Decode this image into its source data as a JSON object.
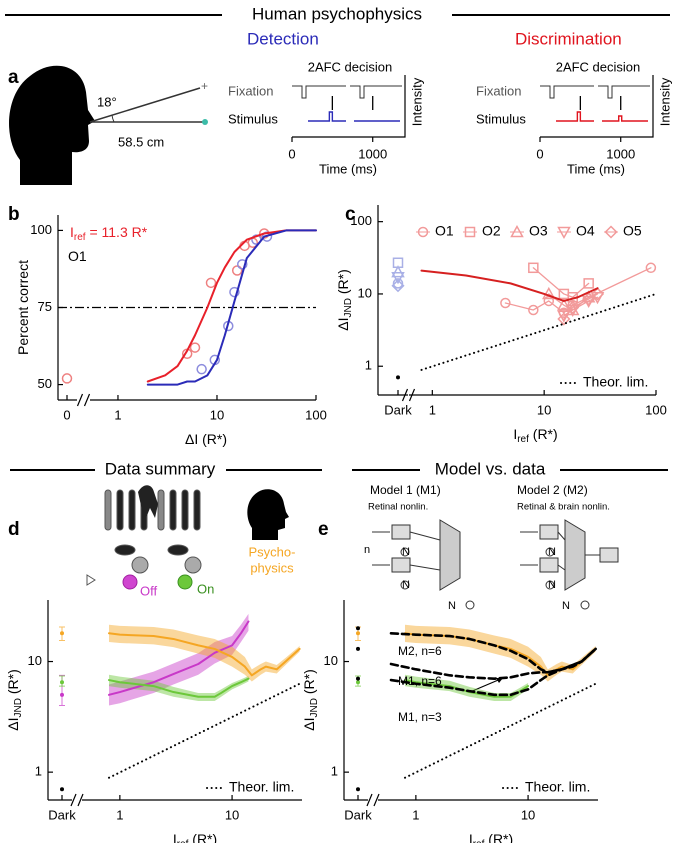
{
  "headers": [
    "Human psychophysics",
    "Data summary",
    "Model vs. data"
  ],
  "panel_a": {
    "panel": "a",
    "angle": "18°",
    "distance": "58.5 cm",
    "insets": [
      {
        "title": "Detection",
        "color": "#2b2bb8",
        "decision": "2AFC decision",
        "fixation": "Fixation",
        "stimulus": "Stimulus",
        "ylabel": "Intensity",
        "xlabel": "Time (ms)",
        "xlim": [
          0,
          1400
        ],
        "xticks": [
          0,
          1000
        ]
      },
      {
        "title": "Discrimination",
        "color": "#e0141e",
        "decision": "2AFC decision",
        "fixation": "Fixation",
        "stimulus": "Stimulus",
        "ylabel": "Intensity",
        "xlabel": "Time (ms)",
        "xlim": [
          0,
          1400
        ],
        "xticks": [
          0,
          1000
        ]
      }
    ]
  },
  "icon_labels": [
    "Off",
    "On",
    "Psycho-",
    "physics"
  ],
  "models": {
    "m1": "Model 1 (M1)",
    "m1_sub": "Retinal  nonlin.",
    "m2": "Model 2 (M2)",
    "m2_sub": "Retinal & brain  nonlin.",
    "n": "n",
    "N": "N"
  },
  "chart_data": [
    {
      "type": "line",
      "panel": "b",
      "xscale": "log",
      "xlim": [
        0.6,
        100
      ],
      "xticks": [
        1,
        10,
        100
      ],
      "dark_label": 0,
      "ylim": [
        45,
        105
      ],
      "yticks": [
        50,
        75,
        100
      ],
      "ylabel": [
        "Percent correct"
      ],
      "xlabel": [
        "ΔI (R*)"
      ],
      "hline": 75,
      "annotations": [
        [
          "I",
          "ref",
          " = 11.3 R*"
        ],
        [
          "O1"
        ]
      ],
      "series": [
        {
          "color": "#ee8080",
          "marker": "circle",
          "x": [
            5,
            6,
            8.7,
            16,
            19,
            23,
            30
          ],
          "values": [
            60,
            62,
            83,
            87,
            95,
            96,
            99
          ],
          "dark": 52
        },
        {
          "color": "#8c8cdd",
          "marker": "circle",
          "x": [
            7,
            9.5,
            13,
            15,
            18,
            25,
            32
          ],
          "values": [
            55,
            58,
            69,
            80,
            89,
            97,
            98
          ]
        },
        {
          "color": "#e8202a",
          "style": "solid",
          "x": [
            2,
            3,
            4,
            5,
            6,
            8,
            10,
            12,
            15,
            20,
            30,
            50,
            100
          ],
          "values": [
            51,
            53,
            56,
            61,
            66,
            75,
            83,
            88,
            93,
            97,
            99,
            100,
            100
          ]
        },
        {
          "color": "#2b2bb8",
          "style": "solid",
          "x": [
            2,
            3,
            4,
            5,
            6,
            8,
            10,
            12,
            15,
            20,
            30,
            50,
            100
          ],
          "values": [
            50,
            50,
            50,
            51,
            51,
            53,
            58,
            66,
            77,
            91,
            98,
            100,
            100
          ]
        }
      ]
    },
    {
      "type": "line",
      "panel": "c",
      "xscale": "log",
      "yscale": "log",
      "xlim": [
        0.7,
        100
      ],
      "xticks": [
        1,
        10,
        100
      ],
      "dark_label": "Dark",
      "ylim": [
        0.4,
        170
      ],
      "yticks": [
        1,
        10,
        100
      ],
      "ylabel": [
        "ΔI",
        "JND",
        " (R*)"
      ],
      "xlabel": [
        "I",
        "ref",
        " (R*)"
      ],
      "legend": "top",
      "annotations": [],
      "series": [
        {
          "name": "O1",
          "color": "#f29a9a",
          "dark_color": "#a9b0e6",
          "marker": "circle",
          "style": "solid",
          "x": [
            4.5,
            8,
            11,
            15,
            18,
            90
          ],
          "values": [
            7.5,
            6,
            8,
            5.5,
            7,
            23
          ],
          "dark": 14
        },
        {
          "name": "O2",
          "color": "#f29a9a",
          "dark_color": "#a9b0e6",
          "marker": "square",
          "style": "solid",
          "x": [
            8,
            15,
            18,
            25
          ],
          "values": [
            23,
            10,
            9,
            14
          ],
          "dark": 27
        },
        {
          "name": "O3",
          "color": "#f29a9a",
          "dark_color": "#a9b0e6",
          "marker": "triangle-up",
          "style": "solid",
          "x": [
            11,
            15,
            18,
            25
          ],
          "values": [
            10,
            7,
            6,
            9
          ],
          "dark": 20
        },
        {
          "name": "O4",
          "color": "#f29a9a",
          "dark_color": "#a9b0e6",
          "marker": "triangle-down",
          "style": "solid",
          "x": [
            15,
            18,
            25,
            30
          ],
          "values": [
            5,
            6,
            8,
            9
          ],
          "dark": 17
        },
        {
          "name": "O5",
          "color": "#f29a9a",
          "dark_color": "#a9b0e6",
          "marker": "diamond",
          "style": "solid",
          "x": [
            15,
            18,
            25,
            30
          ],
          "values": [
            4.5,
            6.5,
            8.5,
            10
          ],
          "dark": 13
        },
        {
          "color": "#d62020",
          "style": "solid",
          "x": [
            0.8,
            2,
            5,
            10,
            15,
            20,
            30
          ],
          "values": [
            21,
            18,
            14,
            10,
            8,
            9,
            12
          ]
        },
        {
          "name": "Theor. lim.",
          "color": "#000000",
          "style": "dotted",
          "x": [
            0.8,
            100
          ],
          "values": [
            0.89,
            10
          ],
          "dark": 0.7
        }
      ]
    },
    {
      "type": "line",
      "panel": "d",
      "xscale": "log",
      "yscale": "log",
      "xlim": [
        0.52,
        42
      ],
      "xticks": [
        1,
        10
      ],
      "dark_label": "Dark",
      "ylim": [
        0.56,
        36
      ],
      "yticks": [
        1,
        10
      ],
      "ylabel": [
        "ΔI",
        "JND",
        " (R*)"
      ],
      "xlabel": [
        "I",
        "ref",
        " (R*)"
      ],
      "annotations": [],
      "series": [
        {
          "color": "#c838c8",
          "style": "solid",
          "x": [
            0.8,
            1,
            2,
            3,
            5,
            7,
            10,
            12,
            14
          ],
          "values": [
            5,
            5.3,
            6.5,
            7.7,
            9.5,
            12,
            14,
            18,
            23
          ],
          "lower": [
            4,
            4.2,
            5.2,
            6.2,
            7.6,
            9.6,
            11.5,
            15,
            19
          ],
          "upper": [
            6.2,
            6.6,
            8.1,
            9.6,
            11.9,
            15,
            17,
            21.5,
            27
          ],
          "dark": 5,
          "dark_err": [
            4,
            7.5
          ]
        },
        {
          "color": "#6cc83a",
          "style": "solid",
          "x": [
            0.8,
            1,
            2,
            3,
            5,
            7,
            8,
            10,
            12,
            14
          ],
          "values": [
            6.8,
            6.5,
            6,
            5.3,
            4.8,
            4.8,
            5.2,
            6,
            6.5,
            7
          ],
          "lower": [
            6,
            5.8,
            5.4,
            4.8,
            4.4,
            4.4,
            4.8,
            5.6,
            6.1,
            6.6
          ],
          "upper": [
            7.6,
            7.3,
            6.7,
            5.9,
            5.2,
            5.2,
            5.6,
            6.4,
            6.9,
            7.4
          ],
          "dark": 6.5,
          "dark_err": [
            6,
            7.4
          ]
        },
        {
          "color": "#f5a623",
          "style": "solid",
          "x": [
            0.8,
            1,
            2,
            3,
            5,
            7,
            10,
            13,
            15,
            18,
            20,
            25,
            30,
            40
          ],
          "values": [
            18,
            17.5,
            17,
            16,
            14,
            13,
            11,
            9,
            7.5,
            8.5,
            9,
            8.5,
            10,
            13
          ],
          "lower": [
            15,
            14.7,
            14.3,
            13.5,
            11.8,
            10.8,
            9,
            7.6,
            6.6,
            7.6,
            8.1,
            7.8,
            9.3,
            12.3
          ],
          "upper": [
            21.5,
            21,
            20.5,
            19.5,
            17.2,
            16,
            13.6,
            11,
            8.5,
            9.5,
            10,
            9.3,
            10.8,
            13.8
          ],
          "dark": 18,
          "dark_err": [
            15.5,
            20.5
          ]
        },
        {
          "name": "Theor. lim.",
          "color": "#000000",
          "style": "dotted",
          "x": [
            0.8,
            40
          ],
          "values": [
            0.89,
            6.3
          ],
          "dark": 0.7
        }
      ]
    },
    {
      "type": "line",
      "panel": "e",
      "xscale": "log",
      "yscale": "log",
      "xlim": [
        0.52,
        42
      ],
      "xticks": [
        1,
        10
      ],
      "dark_label": "Dark",
      "ylim": [
        0.56,
        36
      ],
      "yticks": [
        1,
        10
      ],
      "ylabel": [
        "ΔI",
        "JND",
        " (R*)"
      ],
      "xlabel": [
        "I",
        "ref",
        " (R*)"
      ],
      "annotations": [
        [
          "M2, n=6"
        ],
        [
          "M1, n=6"
        ],
        [
          "M1, n=3"
        ]
      ],
      "series": [
        {
          "color": "#f5a623",
          "style": "solid",
          "x": [
            0.8,
            1,
            2,
            3,
            5,
            7,
            10,
            13,
            15,
            18,
            20,
            25,
            30,
            40
          ],
          "values": [
            18,
            17.5,
            17,
            16,
            14,
            13,
            11,
            9,
            7.5,
            8.5,
            9,
            8.5,
            10,
            13
          ],
          "lower": [
            15,
            14.7,
            14.3,
            13.5,
            11.8,
            10.8,
            9,
            7.6,
            6.6,
            7.6,
            8.1,
            7.8,
            9.3,
            12.3
          ],
          "upper": [
            21.5,
            21,
            20.5,
            19.5,
            17.2,
            16,
            13.6,
            11,
            8.5,
            9.5,
            10,
            9.3,
            10.8,
            13.8
          ],
          "dark": 18,
          "dark_err": [
            15.5,
            20.5
          ]
        },
        {
          "color": "#6cc83a",
          "style": "solid",
          "x": [
            0.8,
            1,
            2,
            3,
            5,
            7,
            8,
            10
          ],
          "values": [
            6.8,
            6.5,
            6,
            5.3,
            4.8,
            4.8,
            5.2,
            6
          ],
          "lower": [
            6,
            5.8,
            5.4,
            4.8,
            4.4,
            4.4,
            4.8,
            5.6
          ],
          "upper": [
            7.6,
            7.3,
            6.7,
            5.9,
            5.2,
            5.2,
            5.6,
            6.4
          ],
          "dark": 6.5,
          "dark_err": [
            6,
            7.4
          ]
        },
        {
          "color": "#000000",
          "style": "dashed",
          "x": [
            0.6,
            1,
            2,
            3,
            5,
            7,
            10,
            13,
            15,
            20,
            25,
            30,
            40
          ],
          "values": [
            18,
            17.5,
            17,
            16,
            14,
            12.5,
            10.5,
            8.5,
            8,
            8.5,
            9,
            10,
            13
          ],
          "dark": 20
        },
        {
          "color": "#000000",
          "style": "dashed",
          "x": [
            0.6,
            1,
            2,
            3,
            5,
            7,
            10,
            13,
            15,
            20,
            30,
            40
          ],
          "values": [
            9.5,
            8.5,
            7.5,
            7.2,
            7,
            7.2,
            7.8,
            8,
            8,
            8.5,
            10,
            13
          ],
          "dark": 13
        },
        {
          "color": "#000000",
          "style": "dashed",
          "x": [
            0.6,
            1,
            2,
            3,
            5,
            7,
            10,
            13,
            15,
            20,
            30,
            40
          ],
          "values": [
            6.8,
            6.3,
            5.8,
            5.4,
            5,
            5,
            5.6,
            6.8,
            7.5,
            8.5,
            10,
            13
          ],
          "dark": 7
        },
        {
          "name": "Theor. lim.",
          "color": "#000000",
          "style": "dotted",
          "x": [
            0.8,
            40
          ],
          "values": [
            0.89,
            6.3
          ],
          "dark": 0.7
        }
      ]
    }
  ]
}
